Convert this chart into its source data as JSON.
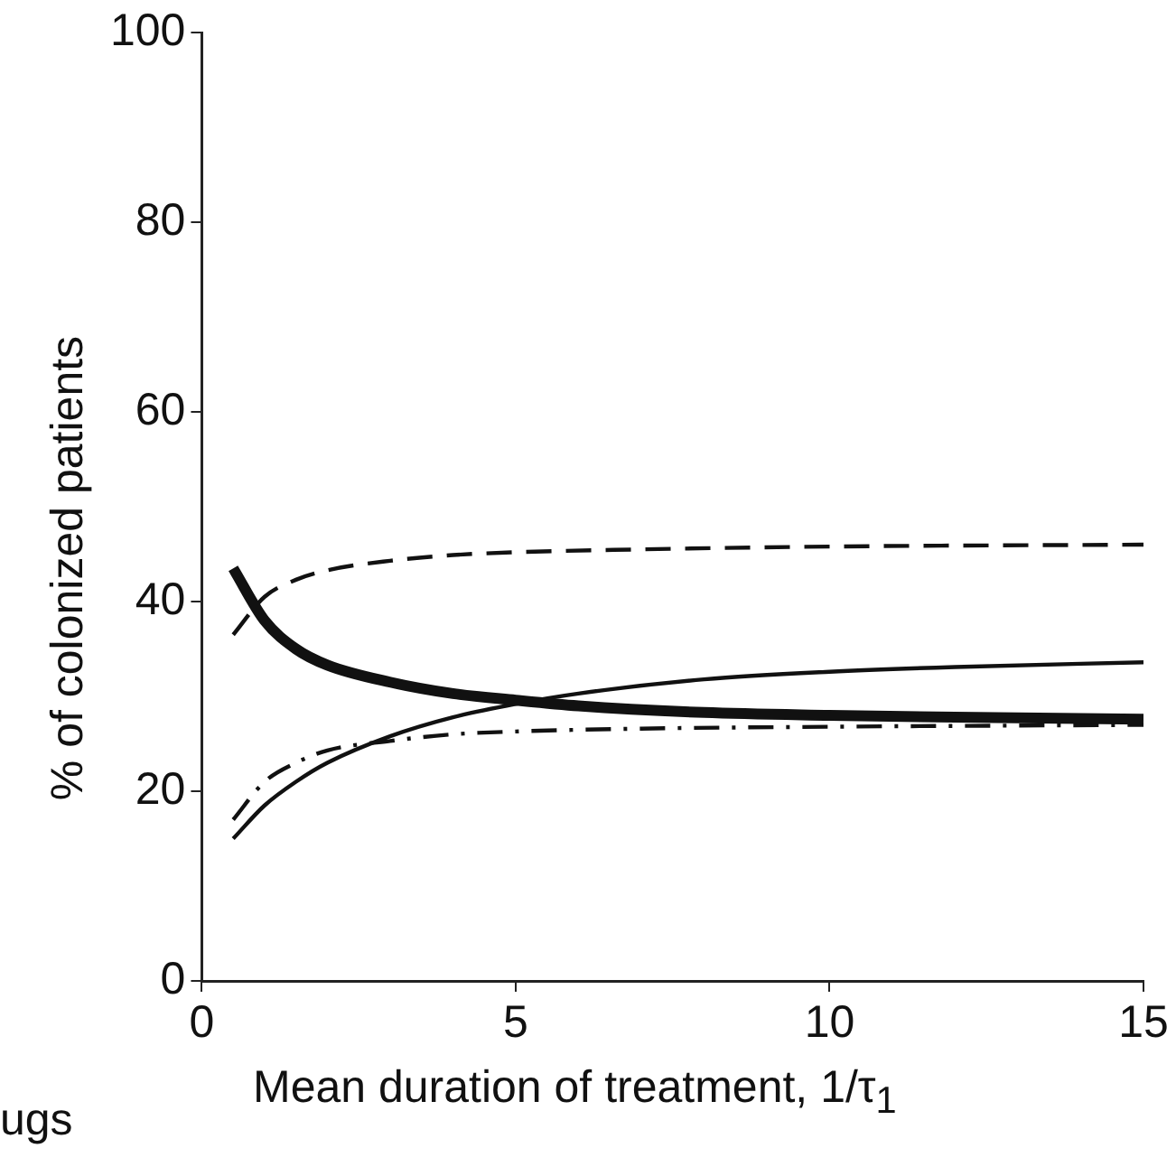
{
  "chart_data": {
    "type": "line",
    "xlabel": "Mean duration of treatment, 1/τ$_{1}$",
    "ylabel": "% of colonized patients",
    "xlim": [
      0,
      15
    ],
    "xticks": [
      0,
      5,
      10,
      15
    ],
    "ylim": [
      0,
      100
    ],
    "yticks": [
      0,
      20,
      40,
      60,
      80,
      100
    ],
    "grid": false,
    "legend": false,
    "marker": "none",
    "annotations": [
      "ugs"
    ],
    "series": [
      {
        "color": "#111111",
        "line_style": "solid",
        "x": [
          0.5,
          1,
          1.5,
          2,
          3,
          4,
          5,
          6,
          8,
          10,
          12,
          15
        ],
        "values": [
          43.5,
          38,
          35,
          33.3,
          31.5,
          30.3,
          29.6,
          29,
          28.3,
          28,
          27.8,
          27.6
        ]
      },
      {
        "color": "#111111",
        "line_style": "solid",
        "x": [
          0.5,
          1,
          1.5,
          2,
          3,
          4,
          5,
          6,
          8,
          10,
          12,
          15
        ],
        "values": [
          15,
          18.5,
          21,
          23,
          25.8,
          27.8,
          29.2,
          30.3,
          31.8,
          32.6,
          33.1,
          33.6
        ]
      },
      {
        "color": "#111111",
        "line_style": "dashed",
        "x": [
          0.5,
          1,
          1.5,
          2,
          3,
          4,
          5,
          7,
          10,
          15
        ],
        "values": [
          36.5,
          40.5,
          42.3,
          43.3,
          44.3,
          44.9,
          45.2,
          45.5,
          45.8,
          46
        ]
      },
      {
        "color": "#111111",
        "line_style": "dashdot",
        "x": [
          0.5,
          1,
          1.5,
          2,
          3,
          4,
          5,
          7,
          10,
          15
        ],
        "values": [
          17,
          21,
          23,
          24.3,
          25.3,
          26,
          26.3,
          26.6,
          26.8,
          27
        ]
      }
    ]
  }
}
